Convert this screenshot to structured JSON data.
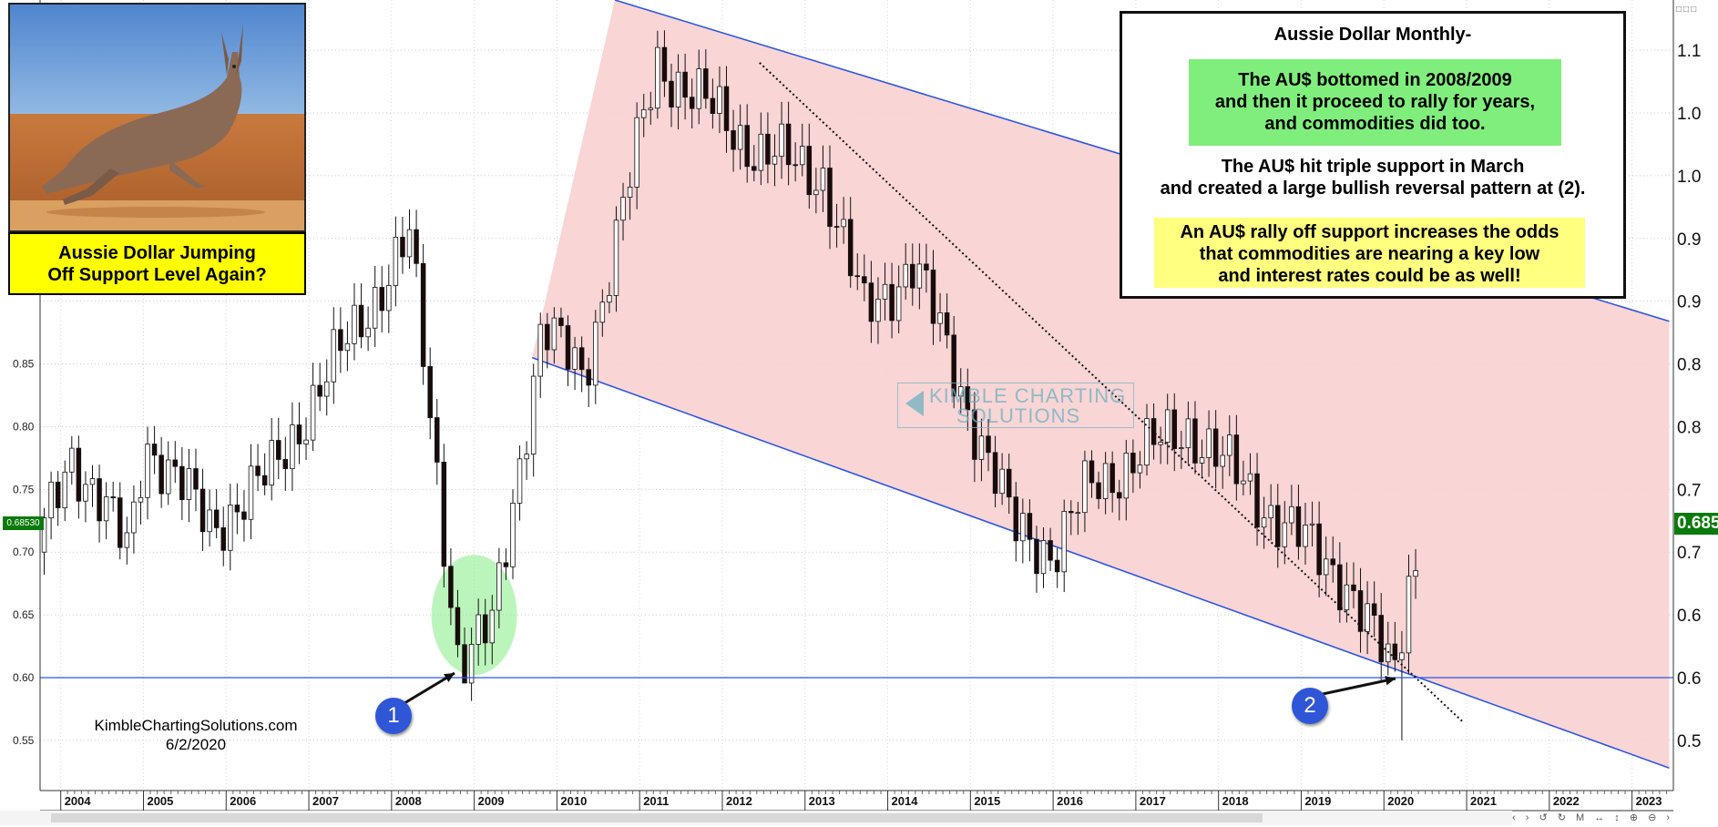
{
  "headline": {
    "line1": "Aussie Dollar Jumping",
    "line2": "Off Support Level Again?"
  },
  "info_box": {
    "title": "Aussie Dollar Monthly-",
    "green_lines": [
      "The AU$ bottomed in 2008/2009",
      "and then it proceed to rally for years,",
      "and commodities did too."
    ],
    "plain_lines": [
      "The AU$ hit triple support in March",
      "and created a large bullish reversal pattern at (2)."
    ],
    "yellow_lines": [
      "An AU$ rally off support increases the odds",
      "that commodities are nearing a key low",
      "and interest rates could be as well!"
    ]
  },
  "credit": {
    "site": "KimbleChartingSolutions.com",
    "date": "6/2/2020"
  },
  "watermark": {
    "line1": "KIMBLE CHARTING",
    "line2": "SOLUTIONS"
  },
  "markers": [
    "1",
    "2"
  ],
  "last_price": {
    "right_label": "0.685",
    "left_label": "0.68530"
  },
  "colors": {
    "channel_fill": "#f8d0d0",
    "channel_line": "#2f56e0",
    "support_line": "#2f56e0",
    "up_candle": "#ffffff",
    "down_candle": "#1a0a0a",
    "highlight": "#90ee90",
    "marker": "#2f56d6",
    "price_tag": "#0a7a0a"
  },
  "icons": [
    "kangaroo-photo",
    "arrow-icon",
    "scroll-left-icon",
    "scroll-right-icon",
    "zoom-icon"
  ],
  "chart_data": {
    "type": "candlestick",
    "title": "Aussie Dollar Monthly-",
    "interval": "monthly",
    "y_left_ticks": [
      "0.55",
      "0.60",
      "0.65",
      "0.70",
      "0.75",
      "0.80",
      "0.85"
    ],
    "y_right_ticks": [
      "0.5",
      "0.6",
      "0.6",
      "0.7",
      "0.7",
      "0.8",
      "0.8",
      "0.9",
      "0.9",
      "1.0",
      "1.0",
      "1.1"
    ],
    "y_right_values": [
      0.55,
      0.6,
      0.65,
      0.7,
      0.75,
      0.8,
      0.85,
      0.9,
      0.95,
      1.0,
      1.05,
      1.1
    ],
    "x_ticks": [
      "2004",
      "2005",
      "2006",
      "2007",
      "2008",
      "2009",
      "2010",
      "2011",
      "2012",
      "2013",
      "2014",
      "2015",
      "2016",
      "2017",
      "2018",
      "2019",
      "2020",
      "2021",
      "2022",
      "2023"
    ],
    "x_range": [
      2003.75,
      2023.5
    ],
    "ylim": [
      0.51,
      1.14
    ],
    "support_level": 0.6,
    "key_points": [
      {
        "date": "2003.8",
        "value": 0.7
      },
      {
        "date": "2004.2",
        "value": 0.78
      },
      {
        "date": "2004.9",
        "value": 0.7
      },
      {
        "date": "2005.1",
        "value": 0.79
      },
      {
        "date": "2005.9",
        "value": 0.72
      },
      {
        "date": "2006.6",
        "value": 0.76
      },
      {
        "date": "2007.3",
        "value": 0.84
      },
      {
        "date": "2008.3",
        "value": 0.95
      },
      {
        "date": "2008.9",
        "value": 0.61
      },
      {
        "date": "2009.3",
        "value": 0.64
      },
      {
        "date": "2009.9",
        "value": 0.88
      },
      {
        "date": "2010.4",
        "value": 0.84
      },
      {
        "date": "2011.3",
        "value": 1.09
      },
      {
        "date": "2012.5",
        "value": 1.02
      },
      {
        "date": "2013.3",
        "value": 1.0
      },
      {
        "date": "2013.8",
        "value": 0.89
      },
      {
        "date": "2014.4",
        "value": 0.93
      },
      {
        "date": "2015.6",
        "value": 0.72
      },
      {
        "date": "2016.1",
        "value": 0.7
      },
      {
        "date": "2016.5",
        "value": 0.75
      },
      {
        "date": "2017.7",
        "value": 0.8
      },
      {
        "date": "2018.9",
        "value": 0.72
      },
      {
        "date": "2019.6",
        "value": 0.68
      },
      {
        "date": "2020.2",
        "value": 0.6
      },
      {
        "date": "2020.4",
        "value": 0.685
      }
    ],
    "channel": {
      "upper": [
        {
          "date": 2010.7,
          "value": 1.14
        },
        {
          "date": 2023.45,
          "value": 0.884
        }
      ],
      "lower": [
        {
          "date": 2009.7,
          "value": 0.855
        },
        {
          "date": 2023.45,
          "value": 0.528
        }
      ]
    },
    "downtrend_dotted": [
      {
        "date": 2012.45,
        "value": 1.09
      },
      {
        "date": 2020.95,
        "value": 0.565
      }
    ],
    "annotations": [
      {
        "label": "1",
        "date": 2008.85,
        "value": 0.608
      },
      {
        "label": "2",
        "date": 2020.25,
        "value": 0.608
      }
    ],
    "last_close": 0.6853
  }
}
